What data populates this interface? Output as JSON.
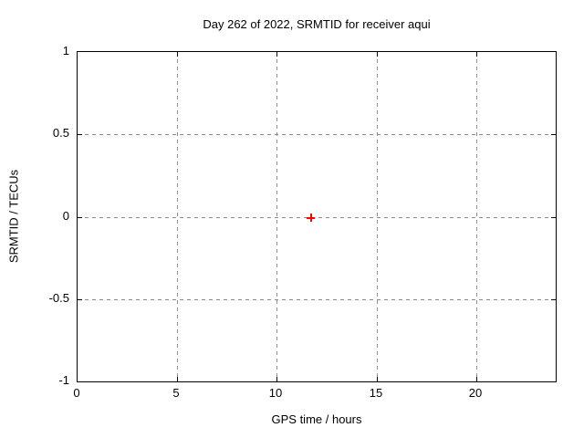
{
  "chart_data": {
    "type": "scatter",
    "title": "Day 262 of 2022, SRMTID for receiver aqui",
    "xlabel": "GPS time / hours",
    "ylabel": "SRMTID / TECUs",
    "xlim": [
      0,
      24
    ],
    "ylim": [
      -1,
      1
    ],
    "x_ticks": [
      0,
      5,
      10,
      15,
      20
    ],
    "x_tick_labels": [
      "0",
      "5",
      "10",
      "15",
      "20"
    ],
    "y_ticks": [
      1,
      0.5,
      0,
      -0.5,
      -1
    ],
    "y_tick_labels": [
      "1",
      "0.5",
      "0",
      "-0.5",
      "-1"
    ],
    "grid": true,
    "legend": "none",
    "series": [
      {
        "name": "SRMTID",
        "marker": "plus",
        "color": "#ff0000",
        "x": [
          11.7
        ],
        "y": [
          0.0
        ]
      }
    ]
  },
  "colors": {
    "background": "#ffffff",
    "axis": "#000000",
    "grid": "#8c8c8c",
    "text": "#000000",
    "marker": "#ff0000"
  }
}
